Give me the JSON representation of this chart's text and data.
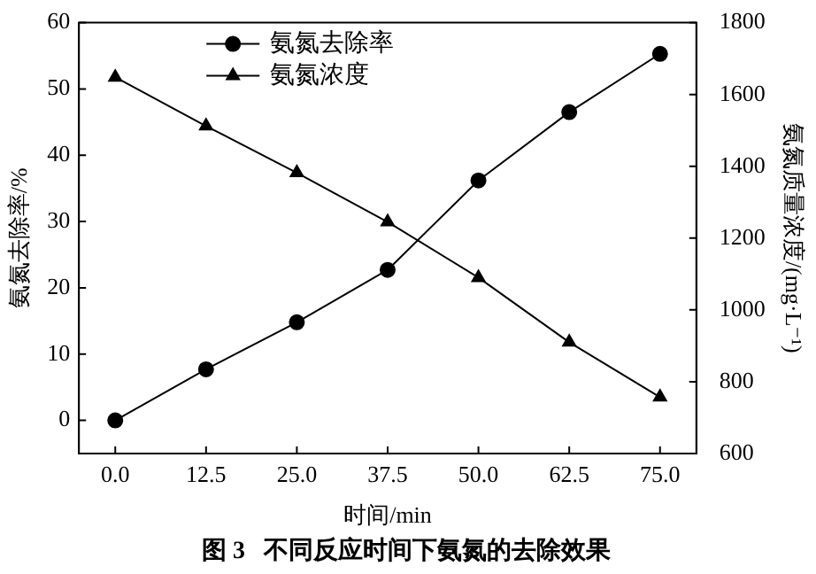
{
  "chart_data": {
    "type": "line",
    "title": "图 3   不同反应时间下氨氮的去除效果",
    "xlabel": "时间/min",
    "ylabel": "氨氮去除率/%",
    "y2label": "氨氮质量浓度/(mg·L⁻¹)",
    "x": [
      0,
      12.5,
      25,
      37.5,
      50,
      62.5,
      75
    ],
    "series": [
      {
        "name": "氨氮去除率",
        "color": "#000000",
        "marker": "circle",
        "values": [
          0,
          7.7,
          14.8,
          22.7,
          36.2,
          46.5,
          55.3
        ]
      },
      {
        "name": "氨氮浓度",
        "color": "#000000",
        "marker": "triangle",
        "axis": "y2",
        "values": [
          1648,
          1512,
          1382,
          1245,
          1090,
          910,
          757
        ]
      }
    ],
    "xlim": [
      -5,
      80
    ],
    "xticks": [
      {
        "value": 0,
        "label": "0.0"
      },
      12.5,
      {
        "value": 25,
        "label": "25.0"
      },
      37.5,
      {
        "value": 50,
        "label": "50.0"
      },
      62.5,
      {
        "value": 75,
        "label": "75.0"
      }
    ],
    "ylim": [
      -5,
      60
    ],
    "yticks": [
      0,
      10,
      20,
      30,
      40,
      50,
      60
    ],
    "y2lim": [
      600,
      1800
    ],
    "y2ticks": [
      600,
      800,
      1000,
      1200,
      1400,
      1600,
      1800
    ],
    "legend": "top left",
    "grid": false
  }
}
